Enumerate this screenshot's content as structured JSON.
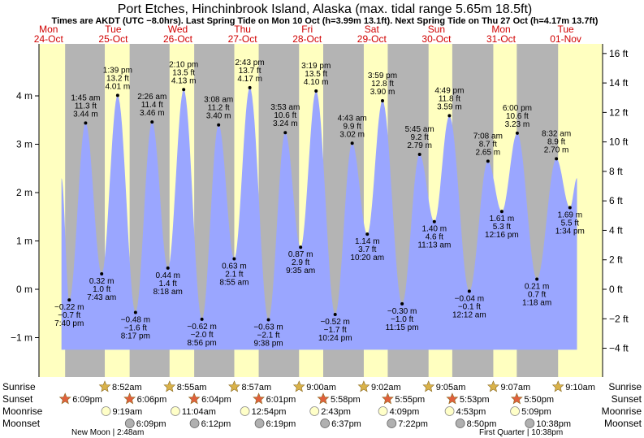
{
  "chart_data": {
    "type": "area",
    "title": "Port Etches, Hinchinbrook Island, Alaska (max. tidal range 5.65m 18.5ft)",
    "subtitle": "Times are AKDT (UTC −8.0hrs). Last Spring Tide on Mon 10 Oct (h=3.99m 13.1ft). Next Spring Tide on Thu 27 Oct (h=4.17m 13.7ft)",
    "ylabel_left_unit": "m",
    "ylabel_right_unit": "ft",
    "ylim_m": [
      -1.5,
      5
    ],
    "left_ticks": [
      "4 m",
      "3 m",
      "2 m",
      "1 m",
      "0 m",
      "−1 m"
    ],
    "left_tick_values": [
      4,
      3,
      2,
      1,
      0,
      -1
    ],
    "right_ticks": [
      "16 ft",
      "14 ft",
      "12 ft",
      "10 ft",
      "8 ft",
      "6 ft",
      "4 ft",
      "2 ft",
      "0 ft",
      "−2 ft",
      "−4 ft"
    ],
    "right_tick_values": [
      16,
      14,
      12,
      10,
      8,
      6,
      4,
      2,
      0,
      -2,
      -4
    ],
    "days": [
      {
        "dow": "Mon",
        "date": "24-Oct"
      },
      {
        "dow": "Tue",
        "date": "25-Oct"
      },
      {
        "dow": "Wed",
        "date": "26-Oct"
      },
      {
        "dow": "Thu",
        "date": "27-Oct"
      },
      {
        "dow": "Fri",
        "date": "28-Oct"
      },
      {
        "dow": "Sat",
        "date": "29-Oct"
      },
      {
        "dow": "Sun",
        "date": "30-Oct"
      },
      {
        "dow": "Mon",
        "date": "31-Oct"
      },
      {
        "dow": "Tue",
        "date": "01-Nov"
      }
    ],
    "tides": [
      {
        "day": 0,
        "hour": 19.67,
        "m": -0.22,
        "label_m": "−0.22 m",
        "label_ft": "−0.7 ft",
        "time": "7:40 pm",
        "type": "low"
      },
      {
        "day": 1,
        "hour": 1.75,
        "m": 3.44,
        "label_m": "3.44 m",
        "label_ft": "11.3 ft",
        "time": "1:45 am",
        "type": "high"
      },
      {
        "day": 1,
        "hour": 7.72,
        "m": 0.32,
        "label_m": "0.32 m",
        "label_ft": "1.0 ft",
        "time": "7:43 am",
        "type": "low"
      },
      {
        "day": 1,
        "hour": 13.65,
        "m": 4.01,
        "label_m": "4.01 m",
        "label_ft": "13.2 ft",
        "time": "1:39 pm",
        "type": "high"
      },
      {
        "day": 1,
        "hour": 20.28,
        "m": -0.48,
        "label_m": "−0.48 m",
        "label_ft": "−1.6 ft",
        "time": "8:17 pm",
        "type": "low"
      },
      {
        "day": 2,
        "hour": 2.43,
        "m": 3.46,
        "label_m": "3.46 m",
        "label_ft": "11.4 ft",
        "time": "2:26 am",
        "type": "high"
      },
      {
        "day": 2,
        "hour": 8.3,
        "m": 0.44,
        "label_m": "0.44 m",
        "label_ft": "1.4 ft",
        "time": "8:18 am",
        "type": "low"
      },
      {
        "day": 2,
        "hour": 14.17,
        "m": 4.13,
        "label_m": "4.13 m",
        "label_ft": "13.5 ft",
        "time": "2:10 pm",
        "type": "high"
      },
      {
        "day": 2,
        "hour": 20.93,
        "m": -0.62,
        "label_m": "−0.62 m",
        "label_ft": "−2.0 ft",
        "time": "8:56 pm",
        "type": "low"
      },
      {
        "day": 3,
        "hour": 3.13,
        "m": 3.4,
        "label_m": "3.40 m",
        "label_ft": "11.2 ft",
        "time": "3:08 am",
        "type": "high"
      },
      {
        "day": 3,
        "hour": 8.92,
        "m": 0.63,
        "label_m": "0.63 m",
        "label_ft": "2.1 ft",
        "time": "8:55 am",
        "type": "low"
      },
      {
        "day": 3,
        "hour": 14.72,
        "m": 4.17,
        "label_m": "4.17 m",
        "label_ft": "13.7 ft",
        "time": "2:43 pm",
        "type": "high"
      },
      {
        "day": 3,
        "hour": 21.63,
        "m": -0.63,
        "label_m": "−0.63 m",
        "label_ft": "−2.1 ft",
        "time": "9:38 pm",
        "type": "low"
      },
      {
        "day": 4,
        "hour": 3.88,
        "m": 3.24,
        "label_m": "3.24 m",
        "label_ft": "10.6 ft",
        "time": "3:53 am",
        "type": "high"
      },
      {
        "day": 4,
        "hour": 9.58,
        "m": 0.87,
        "label_m": "0.87 m",
        "label_ft": "2.9 ft",
        "time": "9:35 am",
        "type": "low"
      },
      {
        "day": 4,
        "hour": 15.32,
        "m": 4.1,
        "label_m": "4.10 m",
        "label_ft": "13.5 ft",
        "time": "3:19 pm",
        "type": "high"
      },
      {
        "day": 4,
        "hour": 22.4,
        "m": -0.52,
        "label_m": "−0.52 m",
        "label_ft": "−1.7 ft",
        "time": "10:24 pm",
        "type": "low"
      },
      {
        "day": 5,
        "hour": 4.72,
        "m": 3.02,
        "label_m": "3.02 m",
        "label_ft": "9.9 ft",
        "time": "4:43 am",
        "type": "high"
      },
      {
        "day": 5,
        "hour": 10.33,
        "m": 1.14,
        "label_m": "1.14 m",
        "label_ft": "3.7 ft",
        "time": "10:20 am",
        "type": "low"
      },
      {
        "day": 5,
        "hour": 15.98,
        "m": 3.9,
        "label_m": "3.90 m",
        "label_ft": "12.8 ft",
        "time": "3:59 pm",
        "type": "high"
      },
      {
        "day": 5,
        "hour": 23.25,
        "m": -0.3,
        "label_m": "−0.30 m",
        "label_ft": "−1.0 ft",
        "time": "11:15 pm",
        "type": "low"
      },
      {
        "day": 6,
        "hour": 5.75,
        "m": 2.79,
        "label_m": "2.79 m",
        "label_ft": "9.2 ft",
        "time": "5:45 am",
        "type": "high"
      },
      {
        "day": 6,
        "hour": 11.22,
        "m": 1.4,
        "label_m": "1.40 m",
        "label_ft": "4.6 ft",
        "time": "11:13 am",
        "type": "low"
      },
      {
        "day": 6,
        "hour": 16.82,
        "m": 3.59,
        "label_m": "3.59 m",
        "label_ft": "11.8 ft",
        "time": "4:49 pm",
        "type": "high"
      },
      {
        "day": 7,
        "hour": 0.2,
        "m": -0.04,
        "label_m": "−0.04 m",
        "label_ft": "−0.1 ft",
        "time": "12:12 am",
        "type": "low"
      },
      {
        "day": 7,
        "hour": 7.13,
        "m": 2.65,
        "label_m": "2.65 m",
        "label_ft": "8.7 ft",
        "time": "7:08 am",
        "type": "high"
      },
      {
        "day": 7,
        "hour": 12.27,
        "m": 1.61,
        "label_m": "1.61 m",
        "label_ft": "5.3 ft",
        "time": "12:16 pm",
        "type": "low"
      },
      {
        "day": 7,
        "hour": 18.0,
        "m": 3.23,
        "label_m": "3.23 m",
        "label_ft": "10.6 ft",
        "time": "6:00 pm",
        "type": "high"
      },
      {
        "day": 8,
        "hour": 1.3,
        "m": 0.21,
        "label_m": "0.21 m",
        "label_ft": "0.7 ft",
        "time": "1:18 am",
        "type": "low"
      },
      {
        "day": 8,
        "hour": 8.53,
        "m": 2.7,
        "label_m": "2.70 m",
        "label_ft": "8.9 ft",
        "time": "8:32 am",
        "type": "high"
      },
      {
        "day": 8,
        "hour": 13.57,
        "m": 1.69,
        "label_m": "1.69 m",
        "label_ft": "5.5 ft",
        "time": "1:34 pm",
        "type": "low"
      }
    ],
    "curve_start": {
      "day": 0,
      "hour": 16.8,
      "m": 2.3
    },
    "curve_end": {
      "day": 8,
      "hour": 16.2,
      "m": 2.3
    },
    "daylight": [
      {
        "day": 0,
        "sunrise": null,
        "sunset": 18.15
      },
      {
        "day": 1,
        "sunrise": 8.87,
        "sunset": 18.1
      },
      {
        "day": 2,
        "sunrise": 8.92,
        "sunset": 18.07
      },
      {
        "day": 3,
        "sunrise": 8.95,
        "sunset": 18.02
      },
      {
        "day": 4,
        "sunrise": 9.0,
        "sunset": 17.97
      },
      {
        "day": 5,
        "sunrise": 9.03,
        "sunset": 17.92
      },
      {
        "day": 6,
        "sunrise": 9.08,
        "sunset": 17.88
      },
      {
        "day": 7,
        "sunrise": 9.12,
        "sunset": 17.83
      },
      {
        "day": 8,
        "sunrise": 9.17,
        "sunset": null
      }
    ],
    "row_labels": [
      "Sunrise",
      "Sunset",
      "Moonrise",
      "Moonset"
    ],
    "sunrise": [
      {
        "day": 1,
        "time": "8:52am"
      },
      {
        "day": 2,
        "time": "8:55am"
      },
      {
        "day": 3,
        "time": "8:57am"
      },
      {
        "day": 4,
        "time": "9:00am"
      },
      {
        "day": 5,
        "time": "9:02am"
      },
      {
        "day": 6,
        "time": "9:05am"
      },
      {
        "day": 7,
        "time": "9:07am"
      },
      {
        "day": 8,
        "time": "9:10am"
      }
    ],
    "sunset": [
      {
        "day": 0,
        "time": "6:09pm"
      },
      {
        "day": 1,
        "time": "6:06pm"
      },
      {
        "day": 2,
        "time": "6:04pm"
      },
      {
        "day": 3,
        "time": "6:01pm"
      },
      {
        "day": 4,
        "time": "5:58pm"
      },
      {
        "day": 5,
        "time": "5:55pm"
      },
      {
        "day": 6,
        "time": "5:53pm"
      },
      {
        "day": 7,
        "time": "5:50pm"
      }
    ],
    "moonrise": [
      {
        "day": 1,
        "time": "9:19am"
      },
      {
        "day": 2,
        "time": "11:04am"
      },
      {
        "day": 3,
        "time": "12:54pm"
      },
      {
        "day": 4,
        "time": "2:43pm"
      },
      {
        "day": 5,
        "time": "4:09pm"
      },
      {
        "day": 6,
        "time": "4:53pm"
      },
      {
        "day": 7,
        "time": "5:09pm"
      }
    ],
    "moonset": [
      {
        "day": 1,
        "time": "6:09pm"
      },
      {
        "day": 2,
        "time": "6:12pm"
      },
      {
        "day": 3,
        "time": "6:19pm"
      },
      {
        "day": 4,
        "time": "6:37pm"
      },
      {
        "day": 5,
        "time": "7:22pm"
      },
      {
        "day": 6,
        "time": "8:50pm"
      },
      {
        "day": 7,
        "time": "10:38pm"
      }
    ],
    "moon_phases": [
      {
        "label": "New Moon | 2:48am"
      },
      {
        "label": "First Quarter | 10:38pm"
      }
    ]
  },
  "colors": {
    "night": "#b4b4b4",
    "day": "#ffffc0",
    "water": "#9aa6ff",
    "sun_star": "#d9b24a",
    "sunset_star": "#e0603c",
    "moonrise": "#ffffc8",
    "moonset": "#b0b0b0",
    "red_text": "#d00000"
  }
}
